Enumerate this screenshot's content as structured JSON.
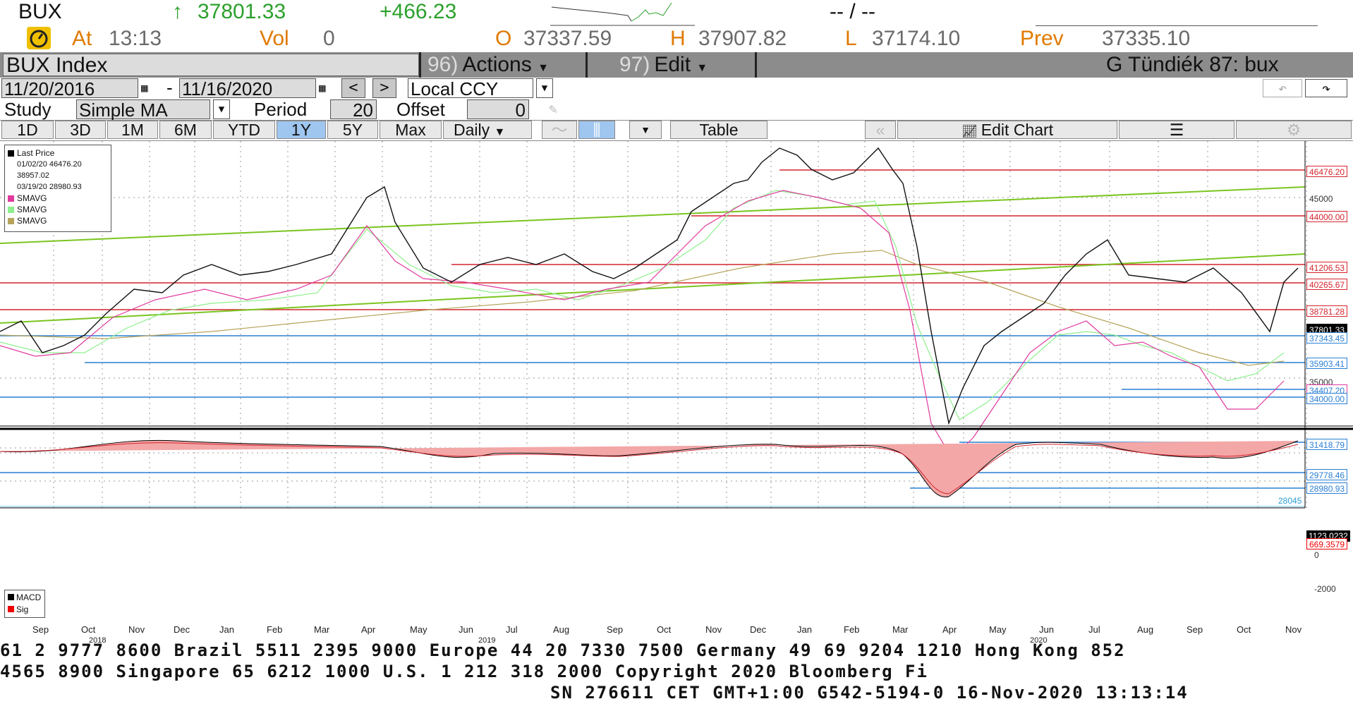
{
  "quote": {
    "ticker": "BUX",
    "arrow": "↑",
    "last": "37801.33",
    "change": "+466.23",
    "placeholder": "-- / --",
    "at_label": "At",
    "at_time": "13:13",
    "vol_label": "Vol",
    "vol": "0",
    "open_label": "O",
    "open": "37337.59",
    "high_label": "H",
    "high": "37907.82",
    "low_label": "L",
    "low": "37174.10",
    "prev_label": "Prev",
    "prev": "37335.10"
  },
  "toolbar": {
    "security": "BUX Index",
    "actions_num": "96)",
    "actions_label": "Actions",
    "edit_num": "97)",
    "edit_label": "Edit",
    "user_label": "G Tündiék 87: bux"
  },
  "range": {
    "start": "11/20/2016",
    "dash": "-",
    "end": "11/16/2020",
    "prev_btn": "<",
    "next_btn": ">",
    "currency": "Local CCY"
  },
  "study": {
    "label": "Study",
    "value": "Simple MA",
    "period_label": "Period",
    "period": "20",
    "offset_label": "Offset",
    "offset": "0"
  },
  "tabs": [
    "1D",
    "3D",
    "1M",
    "6M",
    "YTD",
    "1Y",
    "5Y",
    "Max"
  ],
  "active_tab": "1Y",
  "frequency": "Daily",
  "table_label": "Table",
  "edit_chart_label": "Edit Chart",
  "legend": {
    "last_price": "Last Price",
    "high_row": "01/02/20 46476.20",
    "avg_row": "38957.02",
    "low_row": "03/19/20 28980.93",
    "smavg1": "SMAVG",
    "smavg2": "SMAVG",
    "smavg3": "SMAVG"
  },
  "macd_legend": {
    "macd": "MACD",
    "sig": "Sig"
  },
  "price_labels": [
    "46476.20",
    "45000",
    "44000.00",
    "41206.53",
    "40265.67",
    "38781.28",
    "37801.33",
    "37343.45",
    "35903.41",
    "35000",
    "34407.20",
    "34000.00",
    "31418.79",
    "29778.46",
    "28980.93",
    "28045"
  ],
  "macd_labels": [
    "1123.0232",
    "669.3579",
    "0",
    "-2000"
  ],
  "x_months": [
    "Sep",
    "Oct",
    "Nov",
    "Dec",
    "Jan",
    "Feb",
    "Mar",
    "Apr",
    "May",
    "Jun",
    "Jul",
    "Aug",
    "Sep",
    "Oct",
    "Nov",
    "Dec",
    "Jan",
    "Feb",
    "Mar",
    "Apr",
    "May",
    "Jun",
    "Jul",
    "Aug",
    "Sep",
    "Oct",
    "Nov"
  ],
  "x_years": [
    "2018",
    "2019",
    "2020"
  ],
  "footer": {
    "line1": "61 2 9777 8600 Brazil 5511 2395 9000 Europe 44 20 7330 7500 Germany 49 69 9204 1210 Hong Kong 852",
    "line2": "4565 8900      Singapore 65 6212 1000      U.S. 1 212 318 2000      Copyright 2020 Bloomberg Fi",
    "line3": "SN 276611 CET  GMT+1:00 G542-5194-0 16-Nov-2020 13:13:14"
  },
  "colors": {
    "up": "#2ca02c",
    "accent": "#e07a00",
    "tab_active": "#9fc6ef",
    "resistance": "#d4252e",
    "support": "#2a7fd4",
    "trend": "#7ac520"
  }
}
